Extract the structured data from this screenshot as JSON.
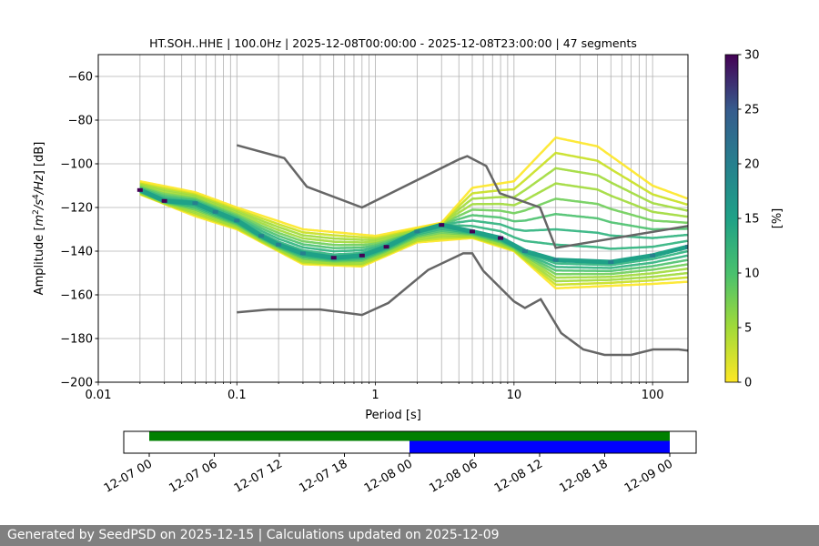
{
  "chart_data": {
    "type": "heatmap",
    "title": "HT.SOH..HHE | 100.0Hz | 2025-12-08T00:00:00 - 2025-12-08T23:00:00 | 47 segments",
    "xlabel": "Period [s]",
    "ylabel": "Amplitude [m²/s⁴/Hz] [dB]",
    "xscale": "log",
    "xlim": [
      0.01,
      180
    ],
    "ylim": [
      -200,
      -50
    ],
    "xticks": [
      {
        "v": 0.01,
        "label": "0.01"
      },
      {
        "v": 0.1,
        "label": "0.1"
      },
      {
        "v": 1,
        "label": "1"
      },
      {
        "v": 10,
        "label": "10"
      },
      {
        "v": 100,
        "label": "100"
      }
    ],
    "yticks": [
      -200,
      -180,
      -160,
      -140,
      -120,
      -100,
      -80,
      -60
    ],
    "grid": true,
    "mode": [
      [
        0.02,
        -112
      ],
      [
        0.03,
        -117
      ],
      [
        0.05,
        -118
      ],
      [
        0.07,
        -122
      ],
      [
        0.1,
        -126
      ],
      [
        0.15,
        -133
      ],
      [
        0.2,
        -137
      ],
      [
        0.3,
        -141
      ],
      [
        0.5,
        -143
      ],
      [
        0.8,
        -142
      ],
      [
        1.2,
        -138
      ],
      [
        2,
        -131
      ],
      [
        3,
        -128
      ],
      [
        5,
        -131
      ],
      [
        8,
        -134
      ],
      [
        12,
        -140
      ],
      [
        20,
        -144
      ],
      [
        50,
        -145
      ],
      [
        100,
        -142
      ],
      [
        180,
        -138
      ]
    ],
    "upper_envelope": [
      [
        0.02,
        -108
      ],
      [
        0.05,
        -113
      ],
      [
        0.1,
        -120
      ],
      [
        0.3,
        -130
      ],
      [
        1,
        -133
      ],
      [
        3,
        -127
      ],
      [
        5,
        -111
      ],
      [
        10,
        -108
      ],
      [
        20,
        -88
      ],
      [
        40,
        -92
      ],
      [
        100,
        -110
      ],
      [
        180,
        -116
      ]
    ],
    "lower_envelope": [
      [
        0.02,
        -114
      ],
      [
        0.05,
        -124
      ],
      [
        0.1,
        -130
      ],
      [
        0.3,
        -146
      ],
      [
        0.8,
        -147
      ],
      [
        2,
        -136
      ],
      [
        5,
        -134
      ],
      [
        10,
        -140
      ],
      [
        20,
        -157
      ],
      [
        100,
        -155
      ],
      [
        180,
        -154
      ]
    ],
    "nhnm": [
      [
        0.1,
        -91.5
      ],
      [
        0.22,
        -97.4
      ],
      [
        0.32,
        -110.5
      ],
      [
        0.8,
        -120
      ],
      [
        4,
        -98
      ],
      [
        4.6,
        -96.5
      ],
      [
        6.3,
        -101
      ],
      [
        7.9,
        -113.5
      ],
      [
        15.4,
        -120
      ],
      [
        20,
        -138.5
      ],
      [
        180,
        -128.5
      ]
    ],
    "nlnm": [
      [
        0.1,
        -168
      ],
      [
        0.17,
        -166.7
      ],
      [
        0.4,
        -166.7
      ],
      [
        0.8,
        -169.2
      ],
      [
        1.24,
        -163.7
      ],
      [
        2.4,
        -148.6
      ],
      [
        4.3,
        -141
      ],
      [
        5,
        -141
      ],
      [
        6,
        -149
      ],
      [
        10,
        -163
      ],
      [
        12,
        -166
      ],
      [
        15.6,
        -162
      ],
      [
        21.9,
        -177.5
      ],
      [
        31.6,
        -185
      ],
      [
        45,
        -187.5
      ],
      [
        70,
        -187.5
      ],
      [
        101,
        -185
      ],
      [
        154,
        -185
      ],
      [
        180,
        -185.5
      ]
    ],
    "colorbar": {
      "label": "[%]",
      "range": [
        0,
        30
      ],
      "ticks": [
        "0",
        "5",
        "10",
        "15",
        "20",
        "25",
        "30"
      ],
      "colormap": "viridis_r"
    },
    "noise_model_color": "#666666"
  },
  "timeline": {
    "ticks": [
      "12-07 00",
      "12-07 06",
      "12-07 12",
      "12-07 18",
      "12-08 00",
      "12-08 06",
      "12-08 12",
      "12-08 18",
      "12-09 00"
    ],
    "available_data": {
      "start_hours": 0,
      "end_hours": 48,
      "color": "#008000"
    },
    "used_data": {
      "start_hours": 24,
      "end_hours": 48,
      "color": "#0000ff"
    }
  },
  "footer": {
    "text": "Generated by SeedPSD on 2025-12-15 | Calculations updated on 2025-12-09"
  }
}
